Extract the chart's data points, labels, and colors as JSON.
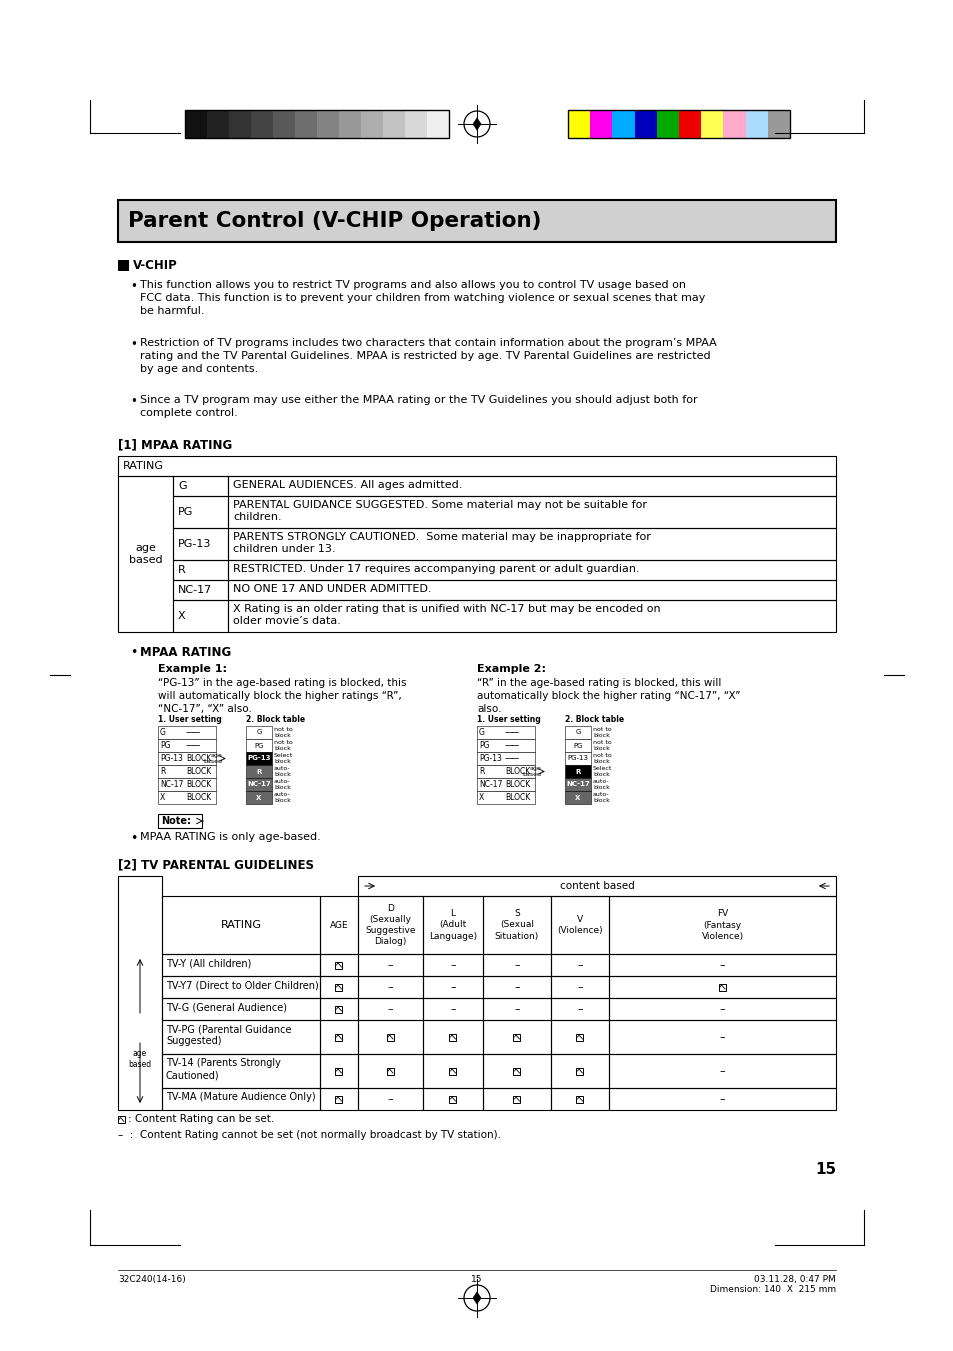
{
  "title": "Parent Control (V-CHIP Operation)",
  "bg_color": "#ffffff",
  "page_number": "15",
  "color_bar_left": [
    "#111111",
    "#222222",
    "#333333",
    "#444444",
    "#595959",
    "#6e6e6e",
    "#848484",
    "#999999",
    "#aeaeae",
    "#c3c3c3",
    "#d8d8d8",
    "#eeeeee"
  ],
  "color_bar_right": [
    "#ffff00",
    "#ff00ee",
    "#00aaff",
    "#0000bb",
    "#00aa00",
    "#ee0000",
    "#ffff55",
    "#ffaacc",
    "#aaddff",
    "#999999"
  ],
  "footer_left": "32C240(14-16)",
  "footer_center": "15",
  "footer_right": "03.11.28, 0:47 PM\nDimension: 140  X  215 mm"
}
